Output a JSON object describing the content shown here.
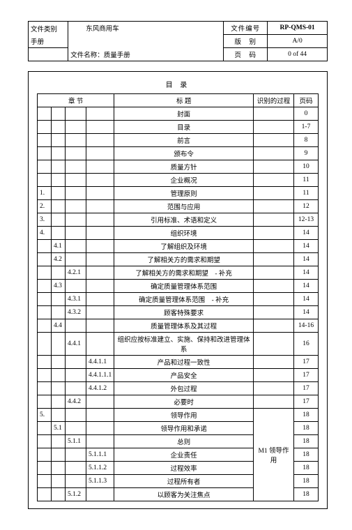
{
  "header": {
    "doc_type_label": "文件类别",
    "doc_type_value": "手册",
    "brand": "东风商用车",
    "file_name_label": "文件名称：",
    "file_name_value": "质量手册",
    "doc_no_label": "文件编号",
    "doc_no_value": "RP-QMS-01",
    "version_label": "版　别",
    "version_value": "A/0",
    "page_label": "页　码",
    "page_value": "0 of 44"
  },
  "toc_title": "目 录",
  "cols": {
    "chapter": "章 节",
    "title": "标 题",
    "process": "识别的过程",
    "page": "页码"
  },
  "rows": [
    {
      "c1": "",
      "c2": "",
      "c3": "",
      "c4": "",
      "t": "封面",
      "p": "",
      "pg": "0"
    },
    {
      "c1": "",
      "c2": "",
      "c3": "",
      "c4": "",
      "t": "目录",
      "p": "",
      "pg": "1-7"
    },
    {
      "c1": "",
      "c2": "",
      "c3": "",
      "c4": "",
      "t": "前言",
      "p": "",
      "pg": "8"
    },
    {
      "c1": "",
      "c2": "",
      "c3": "",
      "c4": "",
      "t": "颁布令",
      "p": "",
      "pg": "9"
    },
    {
      "c1": "",
      "c2": "",
      "c3": "",
      "c4": "",
      "t": "质量方针",
      "p": "",
      "pg": "10"
    },
    {
      "c1": "",
      "c2": "",
      "c3": "",
      "c4": "",
      "t": "企业概况",
      "p": "",
      "pg": "11"
    },
    {
      "c1": "1.",
      "c2": "",
      "c3": "",
      "c4": "",
      "t": "管理原则",
      "p": "",
      "pg": "11"
    },
    {
      "c1": "2.",
      "c2": "",
      "c3": "",
      "c4": "",
      "t": "范围与应用",
      "p": "",
      "pg": "12"
    },
    {
      "c1": "3.",
      "c2": "",
      "c3": "",
      "c4": "",
      "t": "引用标准、术语和定义",
      "p": "",
      "pg": "12-13"
    },
    {
      "c1": "4.",
      "c2": "",
      "c3": "",
      "c4": "",
      "t": "组织环境",
      "p": "",
      "pg": "14"
    },
    {
      "c1": "",
      "c2": "4.1",
      "c3": "",
      "c4": "",
      "t": "了解组织及环境",
      "p": "",
      "pg": "14"
    },
    {
      "c1": "",
      "c2": "4.2",
      "c3": "",
      "c4": "",
      "t": "了解相关方的需求和期望",
      "p": "",
      "pg": "14"
    },
    {
      "c1": "",
      "c2": "",
      "c3": "4.2.1",
      "c4": "",
      "t": "了解相关方的需求和期望　- 补充",
      "p": "",
      "pg": "14"
    },
    {
      "c1": "",
      "c2": "4.3",
      "c3": "",
      "c4": "",
      "t": "确定质量管理体系范围",
      "p": "",
      "pg": "14"
    },
    {
      "c1": "",
      "c2": "",
      "c3": "4.3.1",
      "c4": "",
      "t": "确定质量管理体系范围　- 补充",
      "p": "",
      "pg": "14"
    },
    {
      "c1": "",
      "c2": "",
      "c3": "4.3.2",
      "c4": "",
      "t": "顾客特殊要求",
      "p": "",
      "pg": "14"
    },
    {
      "c1": "",
      "c2": "4.4",
      "c3": "",
      "c4": "",
      "t": "质量管理体系及其过程",
      "p": "",
      "pg": "14-16"
    },
    {
      "c1": "",
      "c2": "",
      "c3": "4.4.1",
      "c4": "",
      "t": "组织应按标准建立、实施、保持和改进管理体系",
      "p": "",
      "pg": "16",
      "tall": true
    },
    {
      "c1": "",
      "c2": "",
      "c3": "",
      "c4": "4.4.1.1",
      "t": "产品和过程一致性",
      "p": "",
      "pg": "17"
    },
    {
      "c1": "",
      "c2": "",
      "c3": "",
      "c4": "4.4.1.1.1",
      "t": "产品安全",
      "p": "",
      "pg": "17"
    },
    {
      "c1": "",
      "c2": "",
      "c3": "",
      "c4": "4.4.1.2",
      "t": "外包过程",
      "p": "",
      "pg": "17"
    },
    {
      "c1": "",
      "c2": "",
      "c3": "4.4.2",
      "c4": "",
      "t": "必要时",
      "p": "",
      "pg": "17"
    }
  ],
  "section5": {
    "rows": [
      {
        "c1": "5.",
        "c2": "",
        "c3": "",
        "c4": "",
        "t": "领导作用",
        "pg": "18"
      },
      {
        "c1": "",
        "c2": "5.1",
        "c3": "",
        "c4": "",
        "t": "领导作用和承诺",
        "pg": "18"
      },
      {
        "c1": "",
        "c2": "",
        "c3": "5.1.1",
        "c4": "",
        "t": "总则",
        "pg": "18"
      },
      {
        "c1": "",
        "c2": "",
        "c3": "",
        "c4": "5.1.1.1",
        "t": "企业责任",
        "pg": "18"
      },
      {
        "c1": "",
        "c2": "",
        "c3": "",
        "c4": "5.1.1.2",
        "t": "过程效率",
        "pg": "18"
      },
      {
        "c1": "",
        "c2": "",
        "c3": "",
        "c4": "5.1.1.3",
        "t": "过程所有者",
        "pg": "18"
      },
      {
        "c1": "",
        "c2": "",
        "c3": "5.1.2",
        "c4": "",
        "t": "以顾客为关注焦点",
        "pg": "18"
      }
    ],
    "process": "M1 领导作用"
  }
}
